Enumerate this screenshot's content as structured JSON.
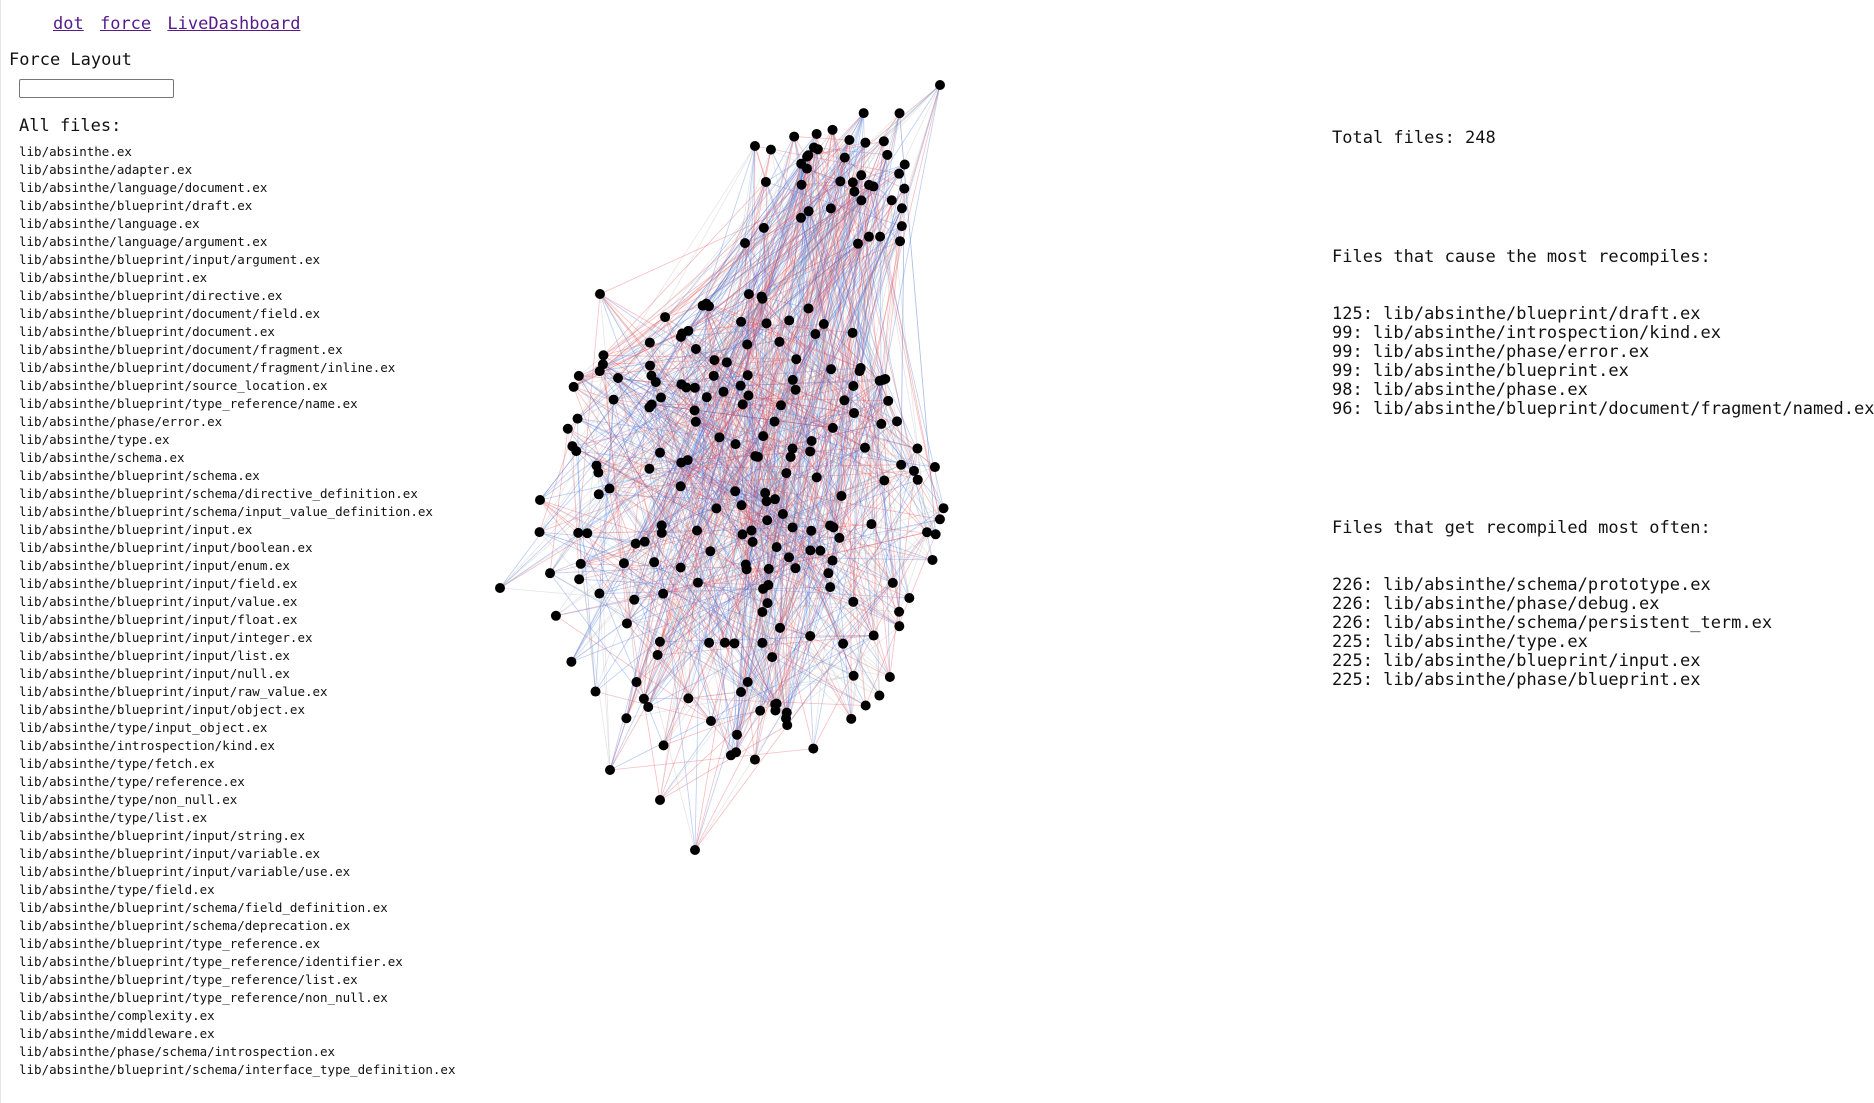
{
  "nav": {
    "links": [
      {
        "label": "dot"
      },
      {
        "label": "force"
      },
      {
        "label": "LiveDashboard"
      }
    ]
  },
  "page": {
    "title": "Force Layout",
    "search_value": "",
    "all_files_label": "All files:"
  },
  "files": [
    "lib/absinthe.ex",
    "lib/absinthe/adapter.ex",
    "lib/absinthe/language/document.ex",
    "lib/absinthe/blueprint/draft.ex",
    "lib/absinthe/language.ex",
    "lib/absinthe/language/argument.ex",
    "lib/absinthe/blueprint/input/argument.ex",
    "lib/absinthe/blueprint.ex",
    "lib/absinthe/blueprint/directive.ex",
    "lib/absinthe/blueprint/document/field.ex",
    "lib/absinthe/blueprint/document.ex",
    "lib/absinthe/blueprint/document/fragment.ex",
    "lib/absinthe/blueprint/document/fragment/inline.ex",
    "lib/absinthe/blueprint/source_location.ex",
    "lib/absinthe/blueprint/type_reference/name.ex",
    "lib/absinthe/phase/error.ex",
    "lib/absinthe/type.ex",
    "lib/absinthe/schema.ex",
    "lib/absinthe/blueprint/schema.ex",
    "lib/absinthe/blueprint/schema/directive_definition.ex",
    "lib/absinthe/blueprint/schema/input_value_definition.ex",
    "lib/absinthe/blueprint/input.ex",
    "lib/absinthe/blueprint/input/boolean.ex",
    "lib/absinthe/blueprint/input/enum.ex",
    "lib/absinthe/blueprint/input/field.ex",
    "lib/absinthe/blueprint/input/value.ex",
    "lib/absinthe/blueprint/input/float.ex",
    "lib/absinthe/blueprint/input/integer.ex",
    "lib/absinthe/blueprint/input/list.ex",
    "lib/absinthe/blueprint/input/null.ex",
    "lib/absinthe/blueprint/input/raw_value.ex",
    "lib/absinthe/blueprint/input/object.ex",
    "lib/absinthe/type/input_object.ex",
    "lib/absinthe/introspection/kind.ex",
    "lib/absinthe/type/fetch.ex",
    "lib/absinthe/type/reference.ex",
    "lib/absinthe/type/non_null.ex",
    "lib/absinthe/type/list.ex",
    "lib/absinthe/blueprint/input/string.ex",
    "lib/absinthe/blueprint/input/variable.ex",
    "lib/absinthe/blueprint/input/variable/use.ex",
    "lib/absinthe/type/field.ex",
    "lib/absinthe/blueprint/schema/field_definition.ex",
    "lib/absinthe/blueprint/schema/deprecation.ex",
    "lib/absinthe/blueprint/type_reference.ex",
    "lib/absinthe/blueprint/type_reference/identifier.ex",
    "lib/absinthe/blueprint/type_reference/list.ex",
    "lib/absinthe/blueprint/type_reference/non_null.ex",
    "lib/absinthe/complexity.ex",
    "lib/absinthe/middleware.ex",
    "lib/absinthe/phase/schema/introspection.ex",
    "lib/absinthe/blueprint/schema/interface_type_definition.ex"
  ],
  "stats": {
    "total_line": "Total files: 248",
    "most_recompiles_heading": "Files that cause the most recompiles:",
    "most_recompiles": [
      "125: lib/absinthe/blueprint/draft.ex",
      "99: lib/absinthe/introspection/kind.ex",
      "99: lib/absinthe/phase/error.ex",
      "99: lib/absinthe/blueprint.ex",
      "98: lib/absinthe/phase.ex",
      "96: lib/absinthe/blueprint/document/fragment/named.ex"
    ],
    "most_recompiled_heading": "Files that get recompiled most often:",
    "most_recompiled": [
      "226: lib/absinthe/schema/prototype.ex",
      "226: lib/absinthe/phase/debug.ex",
      "226: lib/absinthe/schema/persistent_term.ex",
      "225: lib/absinthe/type.ex",
      "225: lib/absinthe/blueprint/input.ex",
      "225: lib/absinthe/phase/blueprint.ex"
    ]
  },
  "graph": {
    "node_color": "#000000",
    "edge_colors": [
      "#e8444d",
      "#3b6fe0",
      "#b8b8b8"
    ]
  }
}
